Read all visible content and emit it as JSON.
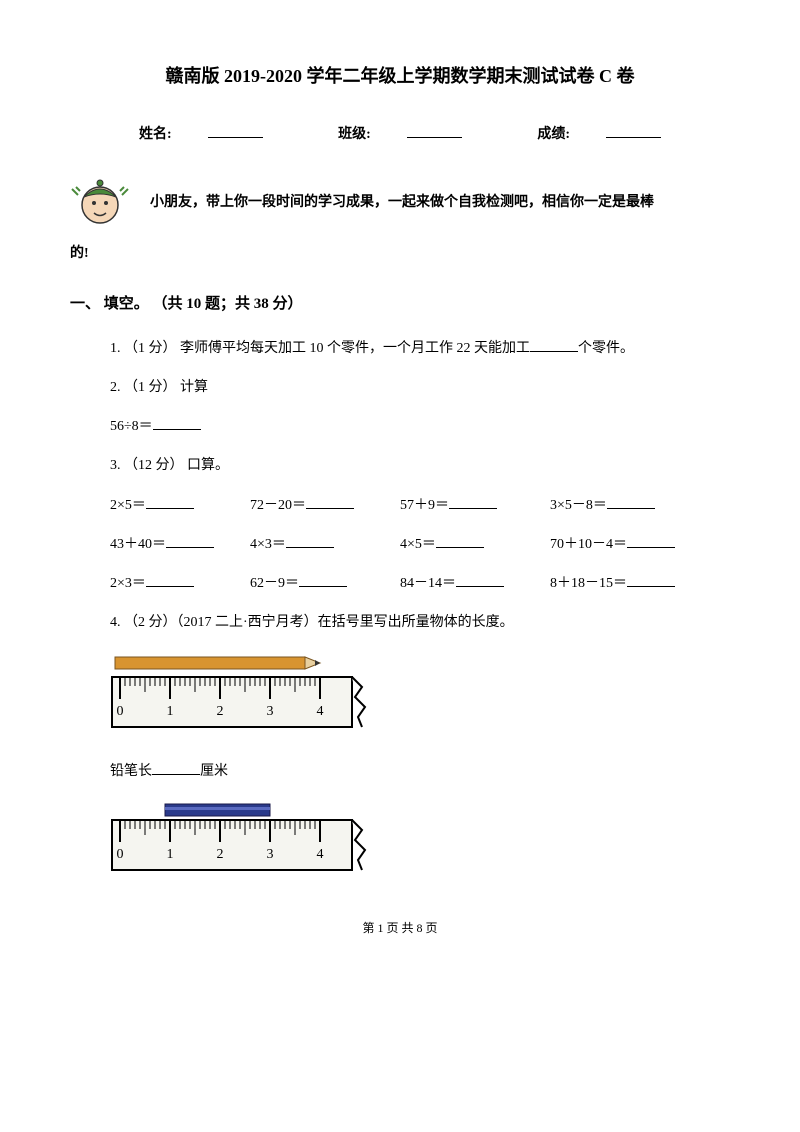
{
  "title": "赣南版 2019-2020 学年二年级上学期数学期末测试试卷 C 卷",
  "info": {
    "name_label": "姓名:",
    "class_label": "班级:",
    "score_label": "成绩:"
  },
  "intro_line1": "小朋友，带上你一段时间的学习成果，一起来做个自我检测吧，相信你一定是最棒",
  "intro_line2": "的!",
  "section1": "一、 填空。 （共 10 题；共 38 分）",
  "q1": "1. （1 分） 李师傅平均每天加工 10 个零件，一个月工作 22 天能加工",
  "q1_tail": "个零件。",
  "q2": "2. （1 分） 计算",
  "q2_expr": "56÷8＝",
  "q3": "3. （12 分） 口算。",
  "calc": {
    "r1c1": "2×5＝",
    "r1c2": "72－20＝",
    "r1c3": "57＋9＝",
    "r1c4": "3×5－8＝",
    "r2c1": "43＋40＝",
    "r2c2": "4×3＝",
    "r2c3": "4×5＝",
    "r2c4": "70＋10－4＝",
    "r3c1": "2×3＝",
    "r3c2": "62－9＝",
    "r3c3": "84－14＝",
    "r3c4": "8＋18－15＝"
  },
  "q4": "4. （2 分）（2017 二上·西宁月考）在括号里写出所量物体的长度。",
  "pencil_label_pre": "铅笔长",
  "pencil_label_post": "厘米",
  "footer": "第 1 页 共 8 页",
  "ruler1": {
    "ticks": [
      "0",
      "1",
      "2",
      "3",
      "4"
    ],
    "pencil_color": "#d89430",
    "tip_color": "#333333",
    "ruler_fill": "#f5f5f0",
    "border": "#000000"
  },
  "ruler2": {
    "ticks": [
      "0",
      "1",
      "2",
      "3",
      "4"
    ],
    "bar_color": "#2a3a8a",
    "ruler_fill": "#f5f5f0",
    "border": "#000000"
  },
  "mascot": {
    "face": "#f5d7b8",
    "cap": "#4a8a3a",
    "outline": "#333333"
  }
}
